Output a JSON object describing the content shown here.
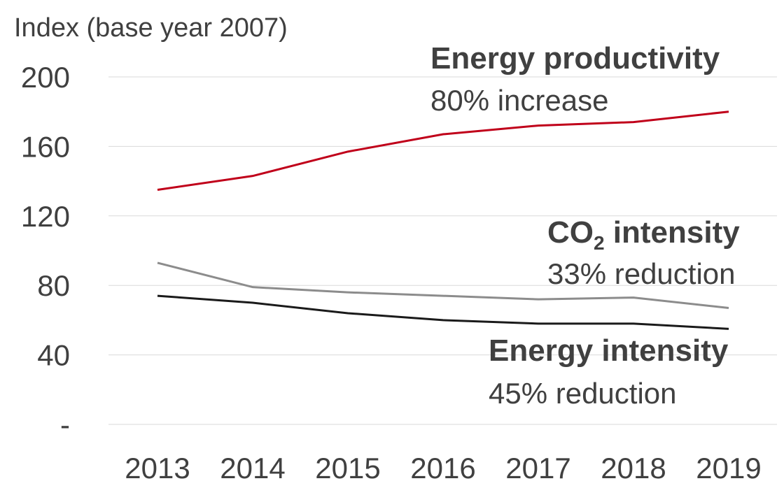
{
  "chart_data": {
    "type": "line",
    "ylabel": "Index (base year 2007)",
    "categories": [
      "2013",
      "2014",
      "2015",
      "2016",
      "2017",
      "2018",
      "2019"
    ],
    "ylim": [
      0,
      200
    ],
    "yticks": [
      0,
      40,
      80,
      120,
      160,
      200
    ],
    "ytick_labels": [
      "-",
      "40",
      "80",
      "120",
      "160",
      "200"
    ],
    "grid": true,
    "series": [
      {
        "name": "Energy productivity",
        "note": "80% increase",
        "color": "#c0001a",
        "values": [
          135,
          143,
          157,
          167,
          172,
          174,
          180
        ]
      },
      {
        "name": "CO2 intensity",
        "note": "33% reduction",
        "color": "#8c8c8c",
        "values": [
          93,
          79,
          76,
          74,
          72,
          73,
          67
        ]
      },
      {
        "name": "Energy intensity",
        "note": "45% reduction",
        "color": "#1a1a1a",
        "values": [
          74,
          70,
          64,
          60,
          58,
          58,
          55
        ]
      }
    ]
  }
}
